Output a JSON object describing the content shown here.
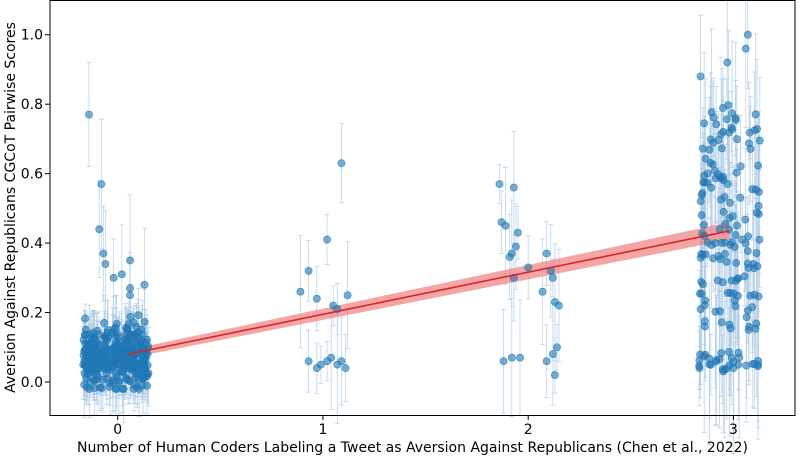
{
  "chart_data": {
    "type": "scatter",
    "title": "",
    "xlabel": "Number of Human Coders Labeling a Tweet as Aversion Against Republicans (Chen et al., 2022)",
    "ylabel": "Aversion Against Republicans CGCoT Pairwise Scores",
    "xlim": [
      -0.33,
      3.3
    ],
    "ylim": [
      -0.095,
      1.1
    ],
    "x_ticks": [
      0,
      1,
      2,
      3
    ],
    "x_tick_labels": [
      "0",
      "1",
      "2",
      "3"
    ],
    "y_ticks": [
      0.0,
      0.2,
      0.4,
      0.6,
      0.8,
      1.0
    ],
    "y_tick_labels": [
      "0.0",
      "0.2",
      "0.4",
      "0.6",
      "0.8",
      "1.0"
    ],
    "grid": false,
    "point_color": "#1f77b4",
    "errorbar_color": "#a6c8e6",
    "fit_line_color": "#d62728",
    "fit_band_color": "#f08080",
    "regression": {
      "x_start": 0.05,
      "x_end": 2.98,
      "y_start": 0.08,
      "y_end": 0.435,
      "band_halfwidth_start": 0.012,
      "band_halfwidth_end": 0.025
    },
    "clusters": [
      {
        "category": 0,
        "x_min": -0.17,
        "x_max": 0.15,
        "count": 320,
        "y_center": 0.07,
        "y_spread": 0.045,
        "outliers": [
          [
            -0.14,
            0.77
          ],
          [
            -0.08,
            0.57
          ],
          [
            -0.09,
            0.44
          ],
          [
            -0.07,
            0.37
          ],
          [
            -0.06,
            0.34
          ],
          [
            0.02,
            0.31
          ],
          [
            0.06,
            0.27
          ],
          [
            0.06,
            0.25
          ],
          [
            0.06,
            0.35
          ],
          [
            0.13,
            0.28
          ],
          [
            -0.02,
            0.3
          ]
        ]
      },
      {
        "category": 1,
        "points": [
          [
            0.89,
            0.26
          ],
          [
            0.93,
            0.32
          ],
          [
            0.97,
            0.24
          ],
          [
            1.02,
            0.41
          ],
          [
            1.05,
            0.22
          ],
          [
            1.07,
            0.21
          ],
          [
            1.09,
            0.63
          ],
          [
            1.12,
            0.25
          ],
          [
            0.93,
            0.06
          ],
          [
            0.99,
            0.05
          ],
          [
            1.02,
            0.06
          ],
          [
            1.04,
            0.07
          ],
          [
            1.07,
            0.05
          ],
          [
            1.09,
            0.06
          ],
          [
            1.11,
            0.04
          ],
          [
            0.97,
            0.04
          ]
        ]
      },
      {
        "category": 2,
        "points": [
          [
            1.86,
            0.57
          ],
          [
            1.87,
            0.46
          ],
          [
            1.89,
            0.45
          ],
          [
            1.91,
            0.36
          ],
          [
            1.92,
            0.37
          ],
          [
            1.93,
            0.56
          ],
          [
            1.94,
            0.39
          ],
          [
            1.95,
            0.43
          ],
          [
            1.93,
            0.3
          ],
          [
            2.0,
            0.33
          ],
          [
            2.07,
            0.26
          ],
          [
            2.09,
            0.37
          ],
          [
            2.11,
            0.32
          ],
          [
            2.12,
            0.3
          ],
          [
            2.13,
            0.23
          ],
          [
            2.15,
            0.22
          ],
          [
            1.88,
            0.06
          ],
          [
            1.92,
            0.07
          ],
          [
            1.96,
            0.07
          ],
          [
            2.09,
            0.06
          ],
          [
            2.12,
            0.08
          ],
          [
            2.14,
            0.1
          ],
          [
            2.13,
            0.02
          ]
        ]
      },
      {
        "category": 3,
        "x_min": 2.83,
        "x_max": 3.13,
        "count": 170,
        "y_min": 0.03,
        "y_max": 1.0,
        "outliers": [
          [
            3.06,
            0.96
          ],
          [
            3.07,
            1.0
          ],
          [
            2.97,
            0.92
          ],
          [
            2.84,
            0.88
          ],
          [
            3.0,
            0.04
          ],
          [
            3.12,
            0.05
          ]
        ]
      }
    ]
  }
}
